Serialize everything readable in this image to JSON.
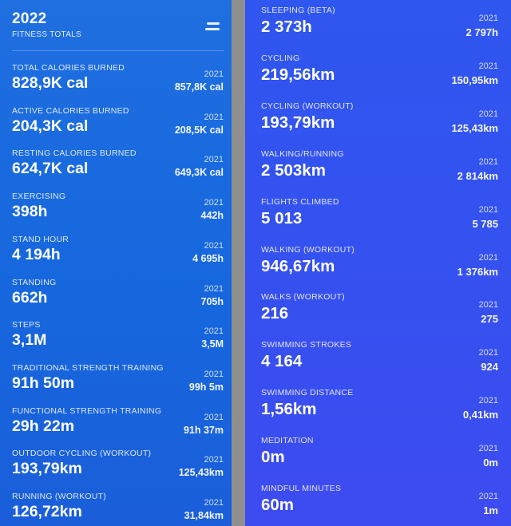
{
  "header": {
    "year": "2022",
    "subtitle": "FITNESS TOTALS",
    "menu_icon": "menu-toggle-icon"
  },
  "left_stats": [
    {
      "label": "TOTAL CALORIES BURNED",
      "value": "828,9K cal",
      "compare_year": "2021",
      "compare_value": "857,8K cal"
    },
    {
      "label": "ACTIVE CALORIES BURNED",
      "value": "204,3K cal",
      "compare_year": "2021",
      "compare_value": "208,5K cal"
    },
    {
      "label": "RESTING CALORIES BURNED",
      "value": "624,7K cal",
      "compare_year": "2021",
      "compare_value": "649,3K cal"
    },
    {
      "label": "EXERCISING",
      "value": "398h",
      "compare_year": "2021",
      "compare_value": "442h"
    },
    {
      "label": "STAND HOUR",
      "value": "4 194h",
      "compare_year": "2021",
      "compare_value": "4 695h"
    },
    {
      "label": "STANDING",
      "value": "662h",
      "compare_year": "2021",
      "compare_value": "705h"
    },
    {
      "label": "STEPS",
      "value": "3,1M",
      "compare_year": "2021",
      "compare_value": "3,5M"
    },
    {
      "label": "TRADITIONAL STRENGTH TRAINING",
      "value": "91h 50m",
      "compare_year": "2021",
      "compare_value": "99h 5m"
    },
    {
      "label": "FUNCTIONAL STRENGTH TRAINING",
      "value": "29h 22m",
      "compare_year": "2021",
      "compare_value": "91h 37m"
    },
    {
      "label": "OUTDOOR CYCLING (WORKOUT)",
      "value": "193,79km",
      "compare_year": "2021",
      "compare_value": "125,43km"
    },
    {
      "label": "RUNNING (WORKOUT)",
      "value": "126,72km",
      "compare_year": "2021",
      "compare_value": "31,84km"
    }
  ],
  "right_stats": [
    {
      "label": "SLEEPING (BETA)",
      "value": "2 373h",
      "compare_year": "2021",
      "compare_value": "2 797h"
    },
    {
      "label": "CYCLING",
      "value": "219,56km",
      "compare_year": "2021",
      "compare_value": "150,95km"
    },
    {
      "label": "CYCLING (WORKOUT)",
      "value": "193,79km",
      "compare_year": "2021",
      "compare_value": "125,43km"
    },
    {
      "label": "WALKING/RUNNING",
      "value": "2 503km",
      "compare_year": "2021",
      "compare_value": "2 814km"
    },
    {
      "label": "FLIGHTS CLIMBED",
      "value": "5 013",
      "compare_year": "2021",
      "compare_value": "5 785"
    },
    {
      "label": "WALKING (WORKOUT)",
      "value": "946,67km",
      "compare_year": "2021",
      "compare_value": "1 376km"
    },
    {
      "label": "WALKS (WORKOUT)",
      "value": "216",
      "compare_year": "2021",
      "compare_value": "275"
    },
    {
      "label": "SWIMMING STROKES",
      "value": "4 164",
      "compare_year": "2021",
      "compare_value": "924"
    },
    {
      "label": "SWIMMING DISTANCE",
      "value": "1,56km",
      "compare_year": "2021",
      "compare_value": "0,41km"
    },
    {
      "label": "MEDITATION",
      "value": "0m",
      "compare_year": "2021",
      "compare_value": "0m"
    },
    {
      "label": "MINDFUL MINUTES",
      "value": "60m",
      "compare_year": "2021",
      "compare_value": "1m"
    }
  ]
}
